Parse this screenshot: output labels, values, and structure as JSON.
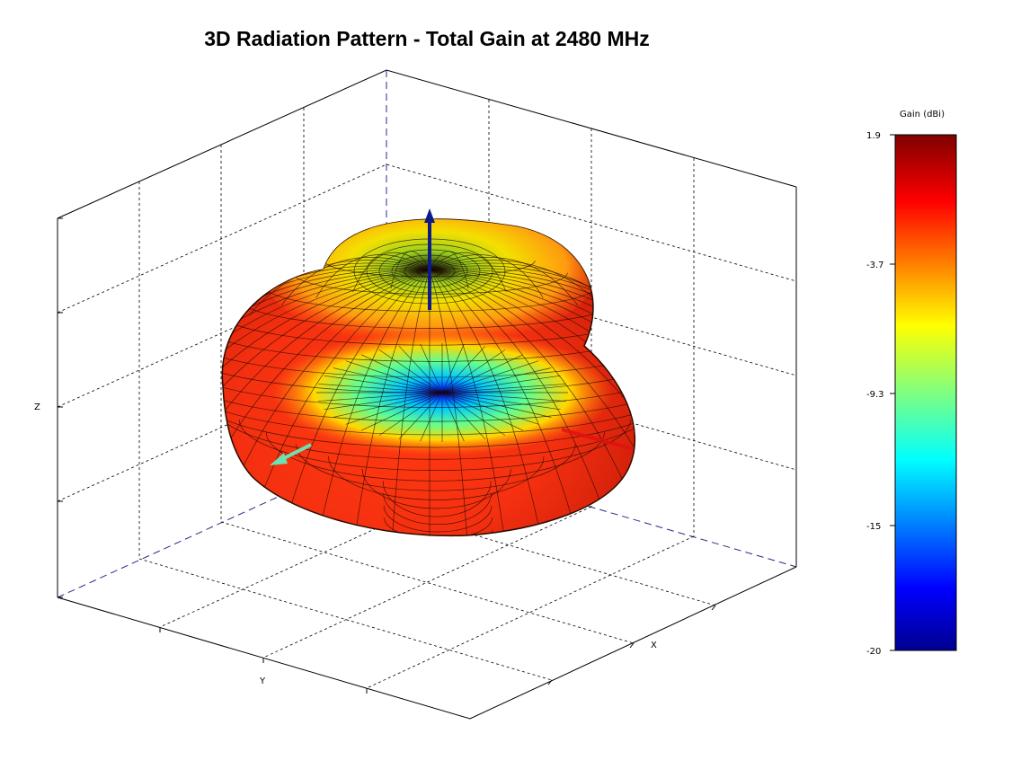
{
  "chart_data": {
    "type": "surface3d",
    "title": "3D Radiation Pattern - Total Gain at 2480 MHz",
    "xlabel": "X",
    "ylabel": "Y",
    "zlabel": "Z",
    "colorbar": {
      "label": "Gain (dBi)",
      "min": -20,
      "max": 1.9,
      "ticks": [
        "1.9",
        "-3.7",
        "-9.3",
        "-15",
        "-20"
      ],
      "colormap": "jet"
    },
    "max_gain_dbi": 1.9,
    "min_gain_dbi": -20,
    "grid": true,
    "axis_arrows": [
      {
        "axis": "Z",
        "color": "#0d1a8c"
      },
      {
        "axis": "Y",
        "color": "#6fe0b0"
      },
      {
        "axis": "X",
        "color": "#e01010"
      }
    ]
  }
}
